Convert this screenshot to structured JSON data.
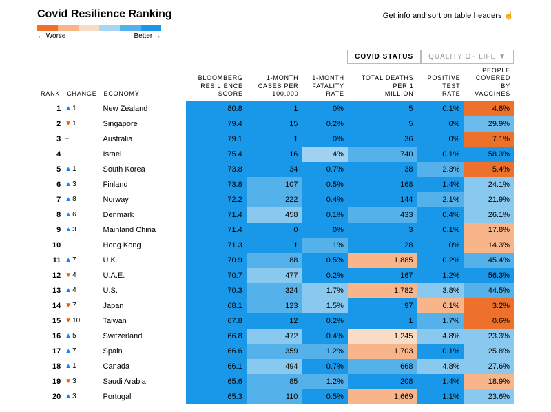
{
  "title": "Covid Resilience Ranking",
  "legend": {
    "worse": "← Worse",
    "better": "Better →",
    "colors": [
      "#ed712a",
      "#f9b58a",
      "#f9dbc6",
      "#a9d6f5",
      "#55b1ea",
      "#1998e9"
    ]
  },
  "info": "Get info and sort on table headers ☝",
  "tabs": {
    "t1": "COVID STATUS",
    "t2": "QUALITY OF LIFE ▼"
  },
  "columns": {
    "rank": "RANK",
    "change": "CHANGE",
    "economy": "ECONOMY",
    "score": "BLOOMBERG RESILIENCE SCORE",
    "cases": "1-MONTH CASES PER 100,000",
    "fatality": "1-MONTH FATALITY RATE",
    "deaths": "TOTAL DEATHS PER 1 MILLION",
    "positive": "POSITIVE TEST RATE",
    "vaccines": "PEOPLE COVERED BY VACCINES"
  },
  "rows": [
    {
      "rank": "1",
      "chSym": "▲",
      "chDir": "up",
      "chVal": "1",
      "economy": "New Zealand",
      "score": "80.8",
      "cases": "1",
      "fatality": "0%",
      "deaths": "5",
      "positive": "0.1%",
      "vaccines": "4.8%",
      "bg": {
        "score": "#1998e9",
        "cases": "#1998e9",
        "fatality": "#1998e9",
        "deaths": "#1998e9",
        "positive": "#1998e9",
        "vaccines": "#ed712a"
      }
    },
    {
      "rank": "2",
      "chSym": "▼",
      "chDir": "down",
      "chVal": "1",
      "economy": "Singapore",
      "score": "79.4",
      "cases": "15",
      "fatality": "0.2%",
      "deaths": "5",
      "positive": "0%",
      "vaccines": "29.9%",
      "bg": {
        "score": "#1998e9",
        "cases": "#1998e9",
        "fatality": "#1998e9",
        "deaths": "#1998e9",
        "positive": "#1998e9",
        "vaccines": "#6bbced"
      }
    },
    {
      "rank": "3",
      "chSym": "–",
      "chDir": "dash",
      "chVal": "",
      "economy": "Australia",
      "score": "79.1",
      "cases": "1",
      "fatality": "0%",
      "deaths": "36",
      "positive": "0%",
      "vaccines": "7.1%",
      "bg": {
        "score": "#1998e9",
        "cases": "#1998e9",
        "fatality": "#1998e9",
        "deaths": "#1998e9",
        "positive": "#1998e9",
        "vaccines": "#ed712a"
      }
    },
    {
      "rank": "4",
      "chSym": "–",
      "chDir": "dash",
      "chVal": "",
      "economy": "Israel",
      "score": "75.4",
      "cases": "16",
      "fatality": "4%",
      "deaths": "740",
      "positive": "0.1%",
      "vaccines": "58.3%",
      "bg": {
        "score": "#1998e9",
        "cases": "#1998e9",
        "fatality": "#a0d1f1",
        "deaths": "#55b1ea",
        "positive": "#1998e9",
        "vaccines": "#1998e9"
      }
    },
    {
      "rank": "5",
      "chSym": "▲",
      "chDir": "up",
      "chVal": "1",
      "economy": "South Korea",
      "score": "73.8",
      "cases": "34",
      "fatality": "0.7%",
      "deaths": "38",
      "positive": "2.3%",
      "vaccines": "5.4%",
      "bg": {
        "score": "#1998e9",
        "cases": "#1998e9",
        "fatality": "#1998e9",
        "deaths": "#1998e9",
        "positive": "#55b1ea",
        "vaccines": "#ed712a"
      }
    },
    {
      "rank": "6",
      "chSym": "▲",
      "chDir": "up",
      "chVal": "3",
      "economy": "Finland",
      "score": "73.8",
      "cases": "107",
      "fatality": "0.5%",
      "deaths": "168",
      "positive": "1.4%",
      "vaccines": "24.1%",
      "bg": {
        "score": "#1998e9",
        "cases": "#55b1ea",
        "fatality": "#1998e9",
        "deaths": "#1998e9",
        "positive": "#1998e9",
        "vaccines": "#89c8ef"
      }
    },
    {
      "rank": "7",
      "chSym": "▲",
      "chDir": "up",
      "chVal": "8",
      "economy": "Norway",
      "score": "72.2",
      "cases": "222",
      "fatality": "0.4%",
      "deaths": "144",
      "positive": "2.1%",
      "vaccines": "21.9%",
      "bg": {
        "score": "#1998e9",
        "cases": "#55b1ea",
        "fatality": "#1998e9",
        "deaths": "#1998e9",
        "positive": "#55b1ea",
        "vaccines": "#89c8ef"
      }
    },
    {
      "rank": "8",
      "chSym": "▲",
      "chDir": "up",
      "chVal": "6",
      "economy": "Denmark",
      "score": "71.4",
      "cases": "458",
      "fatality": "0.1%",
      "deaths": "433",
      "positive": "0.4%",
      "vaccines": "26.1%",
      "bg": {
        "score": "#1998e9",
        "cases": "#89c8ef",
        "fatality": "#1998e9",
        "deaths": "#55b1ea",
        "positive": "#1998e9",
        "vaccines": "#89c8ef"
      }
    },
    {
      "rank": "9",
      "chSym": "▲",
      "chDir": "up",
      "chVal": "3",
      "economy": "Mainland China",
      "score": "71.4",
      "cases": "0",
      "fatality": "0%",
      "deaths": "3",
      "positive": "0.1%",
      "vaccines": "17.8%",
      "bg": {
        "score": "#1998e9",
        "cases": "#1998e9",
        "fatality": "#1998e9",
        "deaths": "#1998e9",
        "positive": "#1998e9",
        "vaccines": "#f9b58a"
      }
    },
    {
      "rank": "10",
      "chSym": "–",
      "chDir": "dash",
      "chVal": "",
      "economy": "Hong Kong",
      "score": "71.3",
      "cases": "1",
      "fatality": "1%",
      "deaths": "28",
      "positive": "0%",
      "vaccines": "14.3%",
      "bg": {
        "score": "#1998e9",
        "cases": "#1998e9",
        "fatality": "#55b1ea",
        "deaths": "#1998e9",
        "positive": "#1998e9",
        "vaccines": "#f9b58a"
      }
    },
    {
      "rank": "11",
      "chSym": "▲",
      "chDir": "up",
      "chVal": "7",
      "economy": "U.K.",
      "score": "70.9",
      "cases": "88",
      "fatality": "0.5%",
      "deaths": "1,885",
      "positive": "0.2%",
      "vaccines": "45.4%",
      "bg": {
        "score": "#1998e9",
        "cases": "#55b1ea",
        "fatality": "#1998e9",
        "deaths": "#f9b58a",
        "positive": "#1998e9",
        "vaccines": "#55b1ea"
      }
    },
    {
      "rank": "12",
      "chSym": "▼",
      "chDir": "down",
      "chVal": "4",
      "economy": "U.A.E.",
      "score": "70.7",
      "cases": "477",
      "fatality": "0.2%",
      "deaths": "167",
      "positive": "1.2%",
      "vaccines": "56.3%",
      "bg": {
        "score": "#1998e9",
        "cases": "#89c8ef",
        "fatality": "#1998e9",
        "deaths": "#1998e9",
        "positive": "#1998e9",
        "vaccines": "#1998e9"
      }
    },
    {
      "rank": "13",
      "chSym": "▲",
      "chDir": "up",
      "chVal": "4",
      "economy": "U.S.",
      "score": "70.3",
      "cases": "324",
      "fatality": "1.7%",
      "deaths": "1,782",
      "positive": "3.8%",
      "vaccines": "44.5%",
      "bg": {
        "score": "#1998e9",
        "cases": "#55b1ea",
        "fatality": "#89c8ef",
        "deaths": "#f9b58a",
        "positive": "#89c8ef",
        "vaccines": "#55b1ea"
      }
    },
    {
      "rank": "14",
      "chSym": "▼",
      "chDir": "down",
      "chVal": "7",
      "economy": "Japan",
      "score": "68.1",
      "cases": "123",
      "fatality": "1.5%",
      "deaths": "97",
      "positive": "6.1%",
      "vaccines": "3.2%",
      "bg": {
        "score": "#1998e9",
        "cases": "#55b1ea",
        "fatality": "#89c8ef",
        "deaths": "#1998e9",
        "positive": "#f9b58a",
        "vaccines": "#ed712a"
      }
    },
    {
      "rank": "15",
      "chSym": "▼",
      "chDir": "down",
      "chVal": "10",
      "economy": "Taiwan",
      "score": "67.8",
      "cases": "12",
      "fatality": "0.2%",
      "deaths": "1",
      "positive": "1.7%",
      "vaccines": "0.6%",
      "bg": {
        "score": "#1998e9",
        "cases": "#1998e9",
        "fatality": "#1998e9",
        "deaths": "#1998e9",
        "positive": "#55b1ea",
        "vaccines": "#ed712a"
      }
    },
    {
      "rank": "16",
      "chSym": "▲",
      "chDir": "up",
      "chVal": "5",
      "economy": "Switzerland",
      "score": "66.8",
      "cases": "472",
      "fatality": "0.4%",
      "deaths": "1,245",
      "positive": "4.8%",
      "vaccines": "23.3%",
      "bg": {
        "score": "#1998e9",
        "cases": "#89c8ef",
        "fatality": "#1998e9",
        "deaths": "#f9dbc6",
        "positive": "#89c8ef",
        "vaccines": "#89c8ef"
      }
    },
    {
      "rank": "17",
      "chSym": "▲",
      "chDir": "up",
      "chVal": "7",
      "economy": "Spain",
      "score": "66.6",
      "cases": "359",
      "fatality": "1.2%",
      "deaths": "1,703",
      "positive": "0.1%",
      "vaccines": "25.8%",
      "bg": {
        "score": "#1998e9",
        "cases": "#55b1ea",
        "fatality": "#55b1ea",
        "deaths": "#f9b58a",
        "positive": "#1998e9",
        "vaccines": "#89c8ef"
      }
    },
    {
      "rank": "18",
      "chSym": "▲",
      "chDir": "up",
      "chVal": "1",
      "economy": "Canada",
      "score": "66.1",
      "cases": "494",
      "fatality": "0.7%",
      "deaths": "668",
      "positive": "4.8%",
      "vaccines": "27.6%",
      "bg": {
        "score": "#1998e9",
        "cases": "#89c8ef",
        "fatality": "#1998e9",
        "deaths": "#55b1ea",
        "positive": "#89c8ef",
        "vaccines": "#89c8ef"
      }
    },
    {
      "rank": "19",
      "chSym": "▼",
      "chDir": "down",
      "chVal": "3",
      "economy": "Saudi Arabia",
      "score": "65.6",
      "cases": "85",
      "fatality": "1.2%",
      "deaths": "208",
      "positive": "1.4%",
      "vaccines": "18.9%",
      "bg": {
        "score": "#1998e9",
        "cases": "#55b1ea",
        "fatality": "#55b1ea",
        "deaths": "#1998e9",
        "positive": "#1998e9",
        "vaccines": "#f9b58a"
      }
    },
    {
      "rank": "20",
      "chSym": "▲",
      "chDir": "up",
      "chVal": "3",
      "economy": "Portugal",
      "score": "65.3",
      "cases": "110",
      "fatality": "0.5%",
      "deaths": "1,669",
      "positive": "1.1%",
      "vaccines": "23.6%",
      "bg": {
        "score": "#1998e9",
        "cases": "#55b1ea",
        "fatality": "#1998e9",
        "deaths": "#f9b58a",
        "positive": "#1998e9",
        "vaccines": "#89c8ef"
      }
    }
  ]
}
